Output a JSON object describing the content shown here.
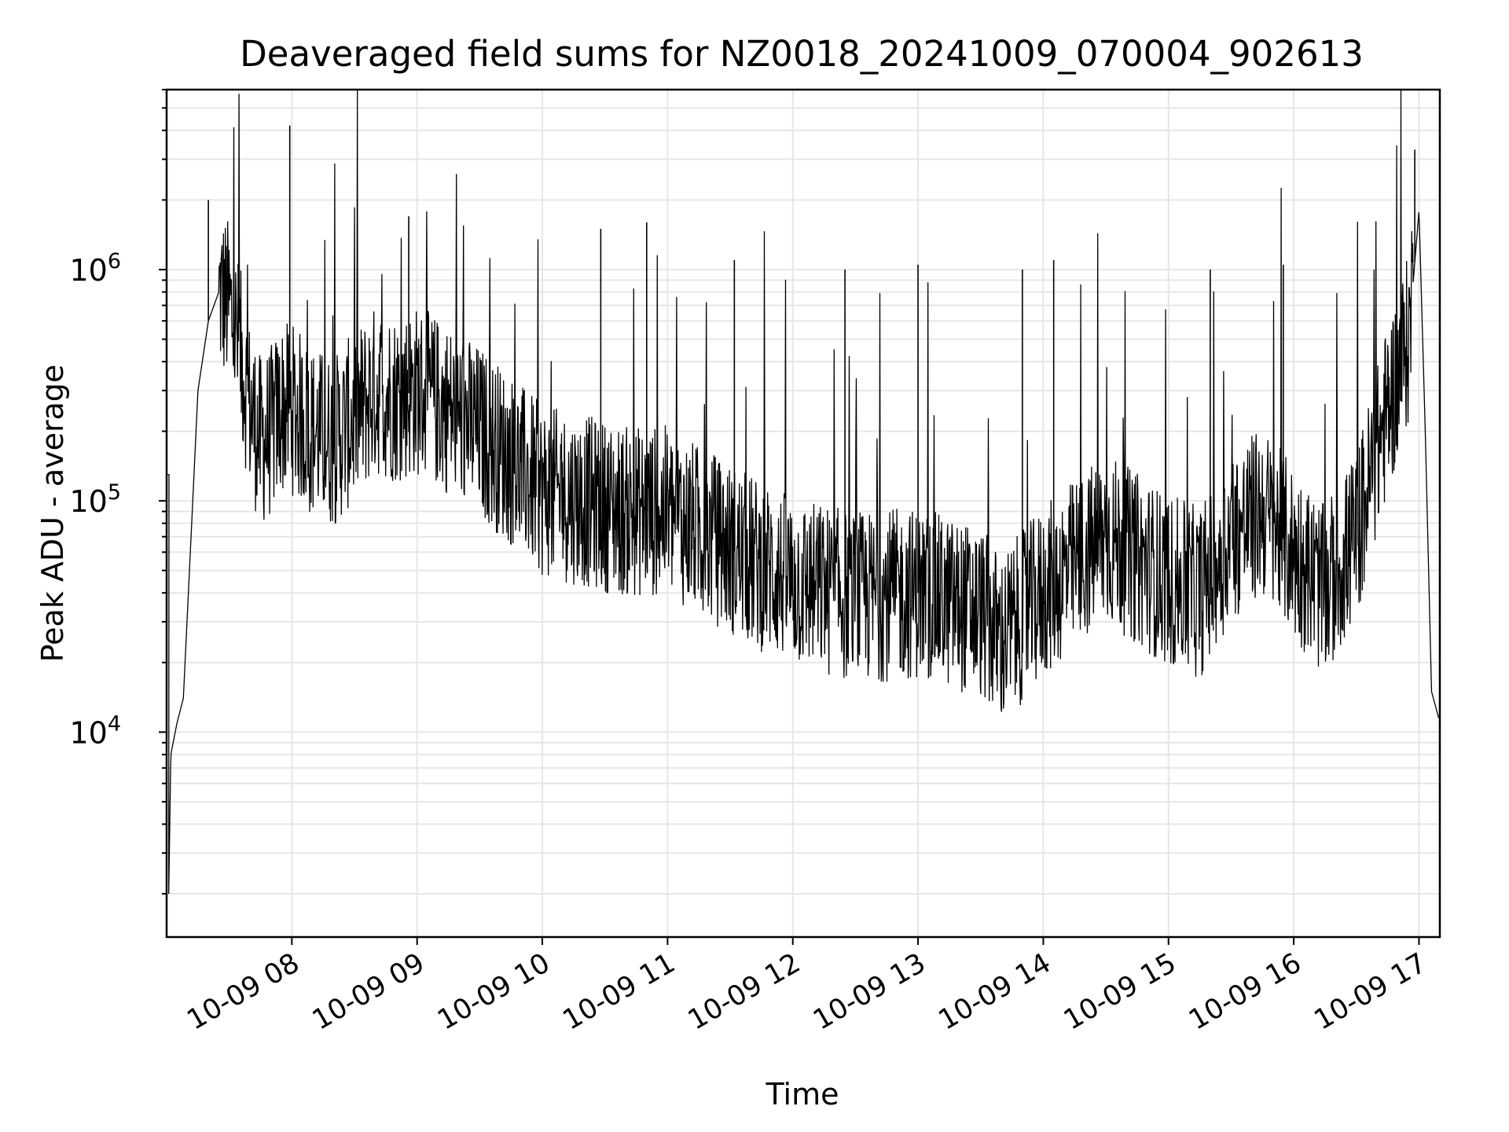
{
  "chart_data": {
    "type": "line",
    "title": "Deaveraged field sums for NZ0018_20241009_070004_902613",
    "xlabel": "Time",
    "ylabel": "Peak ADU - average",
    "y_scale": "log",
    "ylim": [
      1300,
      6000000
    ],
    "xlim": [
      "2024-10-09 07:00",
      "2024-10-09 17:10"
    ],
    "grid": true,
    "line_color": "#000000",
    "x_tick_labels": [
      "10-09 08",
      "10-09 09",
      "10-09 10",
      "10-09 11",
      "10-09 12",
      "10-09 13",
      "10-09 14",
      "10-09 15",
      "10-09 16",
      "10-09 17"
    ],
    "x_tick_times": [
      "2024-10-09 08:00",
      "2024-10-09 09:00",
      "2024-10-09 10:00",
      "2024-10-09 11:00",
      "2024-10-09 12:00",
      "2024-10-09 13:00",
      "2024-10-09 14:00",
      "2024-10-09 15:00",
      "2024-10-09 16:00",
      "2024-10-09 17:00"
    ],
    "y_ticks": [
      {
        "value": 10000,
        "base": "10",
        "exp": "4"
      },
      {
        "value": 100000,
        "base": "10",
        "exp": "5"
      },
      {
        "value": 1000000,
        "base": "10",
        "exp": "6"
      }
    ],
    "series": [
      {
        "x": [
          "2024-10-09 07:00",
          "2024-10-09 07:01",
          "2024-10-09 07:02",
          "2024-10-09 07:05",
          "2024-10-09 07:08",
          "2024-10-09 07:12",
          "2024-10-09 07:15",
          "2024-10-09 07:20",
          "2024-10-09 07:25",
          "2024-10-09 07:30",
          "2024-10-09 07:35",
          "2024-10-09 07:40",
          "2024-10-09 07:45",
          "2024-10-09 07:50",
          "2024-10-09 07:55",
          "2024-10-09 08:00",
          "2024-10-09 08:10",
          "2024-10-09 08:20",
          "2024-10-09 08:30",
          "2024-10-09 08:40",
          "2024-10-09 08:50",
          "2024-10-09 09:00",
          "2024-10-09 09:15",
          "2024-10-09 09:30",
          "2024-10-09 09:45",
          "2024-10-09 10:00",
          "2024-10-09 10:20",
          "2024-10-09 10:40",
          "2024-10-09 11:00",
          "2024-10-09 11:20",
          "2024-10-09 11:40",
          "2024-10-09 12:00",
          "2024-10-09 12:30",
          "2024-10-09 13:00",
          "2024-10-09 13:30",
          "2024-10-09 13:40",
          "2024-10-09 14:00",
          "2024-10-09 14:30",
          "2024-10-09 15:00",
          "2024-10-09 15:15",
          "2024-10-09 15:30",
          "2024-10-09 15:45",
          "2024-10-09 16:00",
          "2024-10-09 16:15",
          "2024-10-09 16:30",
          "2024-10-09 16:45",
          "2024-10-09 16:55",
          "2024-10-09 17:00",
          "2024-10-09 17:03",
          "2024-10-09 17:06",
          "2024-10-09 17:10"
        ],
        "y": [
          130000,
          2000,
          8000,
          11000,
          14000,
          80000,
          300000,
          600000,
          800000,
          700000,
          450000,
          250000,
          180000,
          200000,
          250000,
          250000,
          200000,
          180000,
          230000,
          300000,
          280000,
          300000,
          250000,
          200000,
          150000,
          110000,
          100000,
          90000,
          90000,
          70000,
          55000,
          45000,
          38000,
          40000,
          33000,
          25000,
          40000,
          70000,
          45000,
          40000,
          70000,
          90000,
          60000,
          40000,
          70000,
          250000,
          500000,
          1800000,
          200000,
          15000,
          11000
        ],
        "spikes": [
          {
            "x": "2024-10-09 07:59",
            "y": 4200000
          },
          {
            "x": "2024-10-09 07:20",
            "y": 2000000
          },
          {
            "x": "2024-10-09 08:56",
            "y": 1700000
          },
          {
            "x": "2024-10-09 10:28",
            "y": 1500000
          },
          {
            "x": "2024-10-09 10:50",
            "y": 1600000
          },
          {
            "x": "2024-10-09 11:32",
            "y": 1100000
          },
          {
            "x": "2024-10-09 12:25",
            "y": 1000000
          },
          {
            "x": "2024-10-09 13:00",
            "y": 1050000
          },
          {
            "x": "2024-10-09 13:50",
            "y": 1000000
          },
          {
            "x": "2024-10-09 14:05",
            "y": 1100000
          },
          {
            "x": "2024-10-09 15:20",
            "y": 1000000
          },
          {
            "x": "2024-10-09 15:55",
            "y": 1050000
          },
          {
            "x": "2024-10-09 16:58",
            "y": 3300000
          }
        ]
      }
    ]
  }
}
